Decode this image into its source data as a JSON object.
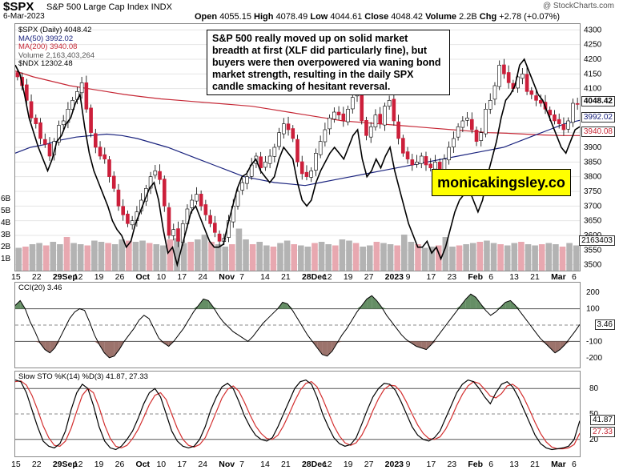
{
  "header": {
    "ticker": "$SPX",
    "description": "S&P 500 Large Cap Index INDX",
    "date": "6-Mar-2023",
    "copyright": "@ StockCharts.com",
    "open_label": "Open",
    "open": "4055.15",
    "high_label": "High",
    "high": "4078.49",
    "low_label": "Low",
    "low": "4044.61",
    "close_label": "Close",
    "close": "4048.42",
    "volume_label": "Volume",
    "volume": "2.2B",
    "chg_label": "Chg",
    "chg": "+2.78 (+0.07%)"
  },
  "legend": {
    "spx": "$SPX (Daily) 4048.42",
    "ma50": "MA(50) 3992.02",
    "ma200": "MA(200) 3940.08",
    "volume": "Volume 2,163,403,264",
    "ndx": "$NDX 12302.48"
  },
  "annotation": "S&P 500 really moved up on solid market breadth at first (XLF did particularly fine), but buyers were then overpowered via waning bond market strength, resulting in the daily SPX candle smacking of hesitant reversal.",
  "watermark": "monicakingsley.co",
  "colors": {
    "up": "#a8a8a8",
    "down": "#cc1f3a",
    "ma50": "#1a237e",
    "ma200": "#c62836",
    "vol_up": "#b3b3b3",
    "vol_down": "#e8a8b0",
    "cci_fill": "#4a7a4a",
    "cci_fill_low": "#8b5a52"
  },
  "x_axis_labels": [
    "15",
    "22",
    "29Sep",
    "12",
    "19",
    "26",
    "Oct",
    "10",
    "17",
    "24",
    "Nov",
    "7",
    "14",
    "21",
    "28Dec",
    "12",
    "19",
    "27",
    "2023",
    "9",
    "17",
    "23",
    "Feb",
    "6",
    "13",
    "21",
    "Mar",
    "6"
  ],
  "cci_legend": "CCI(20) 3.46",
  "sto_legend": "Slow STO %K(14) %D(3) 41.87, 27.33",
  "tags": {
    "spx_last": "4048.42",
    "ma50": "3992.02",
    "ma200": "3940.08",
    "volume": "2163403",
    "cci": "3.46",
    "sto_k": "41.87",
    "sto_d": "27.33"
  },
  "chart_data": [
    {
      "type": "candlestick",
      "title": "$SPX (Daily)",
      "y_right_ticks": [
        3500,
        3550,
        3600,
        3650,
        3700,
        3750,
        3800,
        3850,
        3900,
        3950,
        4000,
        4050,
        4100,
        4150,
        4200,
        4250,
        4300
      ],
      "y_left_volume_ticks": [
        "1B",
        "2B",
        "3B",
        "4B",
        "5B",
        "6B"
      ],
      "ylim": [
        3480,
        4320
      ],
      "close_points": [
        4140,
        4110,
        4060,
        4000,
        3980,
        3930,
        3910,
        3870,
        3920,
        3975,
        3990,
        4030,
        4060,
        4090,
        4120,
        4030,
        3950,
        3900,
        3870,
        3860,
        3800,
        3760,
        3700,
        3670,
        3640,
        3650,
        3680,
        3720,
        3760,
        3800,
        3820,
        3790,
        3700,
        3600,
        3620,
        3580,
        3640,
        3690,
        3720,
        3740,
        3700,
        3670,
        3640,
        3610,
        3580,
        3590,
        3650,
        3700,
        3750,
        3780,
        3800,
        3840,
        3870,
        3830,
        3850,
        3870,
        3900,
        3950,
        3980,
        3960,
        3930,
        3850,
        3810,
        3800,
        3820,
        3880,
        3920,
        3960,
        4000,
        4020,
        4010,
        3990,
        4030,
        4070,
        4080,
        3990,
        3940,
        3970,
        4010,
        3980,
        4040,
        4060,
        3990,
        3930,
        3880,
        3860,
        3840,
        3850,
        3870,
        3840,
        3830,
        3850,
        3820,
        3860,
        3900,
        3930,
        3970,
        3990,
        4000,
        3960,
        3920,
        3950,
        4030,
        4060,
        4110,
        4180,
        4150,
        4120,
        4100,
        4140,
        4150,
        4090,
        4080,
        4060,
        4050,
        4030,
        4010,
        3990,
        3980,
        3960,
        3990,
        4050,
        4048
      ],
      "ma50": [
        3880,
        3900,
        3910,
        3925,
        3935,
        3940,
        3945,
        3940,
        3930,
        3915,
        3900,
        3880,
        3860,
        3840,
        3820,
        3800,
        3790,
        3780,
        3775,
        3770,
        3780,
        3790,
        3800,
        3810,
        3820,
        3830,
        3840,
        3850,
        3860,
        3870,
        3880,
        3890,
        3900,
        3920,
        3940,
        3960,
        3980,
        3992
      ],
      "ma200": [
        4160,
        4140,
        4125,
        4110,
        4100,
        4090,
        4080,
        4072,
        4065,
        4060,
        4055,
        4050,
        4045,
        4040,
        4030,
        4020,
        4010,
        4000,
        3990,
        3985,
        3980,
        3975,
        3970,
        3965,
        3960,
        3955,
        3950,
        3948,
        3945,
        3942,
        3940,
        3940
      ],
      "volume": [
        1.9,
        2.0,
        2.2,
        2.3,
        2.1,
        2.4,
        2.2,
        2.8,
        2.3,
        2.2,
        2.1,
        2.5,
        2.4,
        2.3,
        2.2,
        2.6,
        2.5,
        2.4,
        2.5,
        2.3,
        2.2,
        2.1,
        2.6,
        2.7,
        2.3,
        2.4,
        2.6,
        3.0,
        2.4,
        2.2,
        2.0,
        2.2,
        3.5,
        2.6,
        2.2,
        2.4,
        2.1,
        2.0,
        2.3,
        2.5,
        2.2,
        2.1,
        2.0,
        2.3,
        2.4,
        2.2,
        2.1,
        2.6,
        2.5,
        2.3,
        2.0,
        2.1,
        2.4,
        2.3,
        2.2,
        2.1,
        3.0,
        2.4,
        2.2,
        1.9,
        2.0,
        2.1,
        2.8,
        2.0,
        2.1,
        2.2,
        2.3,
        2.4,
        2.5,
        2.3,
        2.2,
        2.1,
        2.3,
        2.4,
        2.2,
        2.1,
        2.2,
        2.3,
        2.2,
        2.0,
        2.3,
        2.1
      ],
      "ndx_overlay": [
        4180,
        4150,
        4080,
        4000,
        3950,
        3900,
        3860,
        3820,
        3860,
        3920,
        3940,
        3980,
        4000,
        4050,
        4080,
        3970,
        3880,
        3820,
        3780,
        3740,
        3700,
        3650,
        3620,
        3600,
        3560,
        3580,
        3640,
        3680,
        3720,
        3760,
        3780,
        3720,
        3620,
        3540,
        3560,
        3500,
        3560,
        3620,
        3680,
        3700,
        3660,
        3620,
        3580,
        3560,
        3560,
        3570,
        3640,
        3700,
        3760,
        3800,
        3810,
        3840,
        3860,
        3820,
        3800,
        3780,
        3800,
        3860,
        3900,
        3880,
        3860,
        3780,
        3720,
        3700,
        3720,
        3780,
        3820,
        3850,
        3880,
        3900,
        3880,
        3860,
        3900,
        3940,
        3960,
        3860,
        3800,
        3820,
        3860,
        3830,
        3870,
        3900,
        3820,
        3760,
        3700,
        3640,
        3600,
        3560,
        3560,
        3580,
        3540,
        3560,
        3520,
        3560,
        3620,
        3680,
        3720,
        3740,
        3760,
        3720,
        3680,
        3720,
        3800,
        3860,
        3920,
        4000,
        4060,
        4080,
        4110,
        4180,
        4200,
        4160,
        4120,
        4080,
        4060,
        4020,
        3980,
        3940,
        3900,
        3880,
        3920,
        3960,
        3970
      ]
    },
    {
      "type": "line",
      "title": "CCI(20)",
      "y_ticks": [
        200,
        100,
        -100,
        -200
      ],
      "ylim": [
        -260,
        260
      ],
      "values": [
        120,
        150,
        100,
        20,
        -40,
        -110,
        -150,
        -170,
        -140,
        -80,
        -20,
        40,
        80,
        100,
        90,
        20,
        -60,
        -120,
        -170,
        -200,
        -190,
        -150,
        -100,
        -60,
        -20,
        30,
        60,
        40,
        -20,
        -80,
        -110,
        -130,
        -100,
        -60,
        -20,
        30,
        80,
        120,
        160,
        150,
        110,
        60,
        20,
        -10,
        -40,
        -60,
        -80,
        -100,
        -70,
        -30,
        10,
        40,
        70,
        100,
        140,
        130,
        90,
        40,
        -10,
        -60,
        -100,
        -140,
        -180,
        -190,
        -160,
        -110,
        -60,
        -20,
        30,
        80,
        120,
        160,
        180,
        150,
        110,
        60,
        20,
        -20,
        -60,
        -90,
        -110,
        -130,
        -140,
        -150,
        -120,
        -80,
        -40,
        0,
        40,
        80,
        120,
        160,
        190,
        170,
        130,
        90,
        60,
        80,
        110,
        140,
        150,
        120,
        80,
        40,
        0,
        -40,
        -80,
        -110,
        -140,
        -170,
        -150,
        -120,
        -80,
        -40,
        3.46
      ]
    },
    {
      "type": "line",
      "title": "Slow STO %K(14) %D(3)",
      "y_ticks": [
        80,
        50,
        20
      ],
      "ylim": [
        0,
        100
      ],
      "k_values": [
        90,
        88,
        75,
        55,
        35,
        18,
        12,
        10,
        15,
        30,
        55,
        75,
        85,
        80,
        60,
        35,
        18,
        10,
        8,
        12,
        20,
        30,
        45,
        62,
        75,
        80,
        70,
        50,
        30,
        18,
        12,
        10,
        12,
        20,
        35,
        55,
        70,
        82,
        86,
        80,
        65,
        48,
        35,
        25,
        20,
        18,
        22,
        35,
        50,
        65,
        80,
        88,
        90,
        85,
        70,
        50,
        35,
        22,
        15,
        12,
        14,
        22,
        38,
        55,
        70,
        80,
        86,
        85,
        78,
        65,
        50,
        35,
        25,
        20,
        18,
        22,
        30,
        45,
        60,
        75,
        85,
        90,
        88,
        80,
        70,
        62,
        75,
        85,
        88,
        82,
        70,
        55,
        40,
        25,
        15,
        10,
        8,
        9,
        10,
        12,
        20,
        41.87
      ],
      "d_values": [
        88,
        89,
        84,
        72,
        55,
        36,
        22,
        13,
        12,
        18,
        33,
        53,
        72,
        80,
        75,
        58,
        37,
        21,
        12,
        10,
        13,
        21,
        32,
        46,
        61,
        72,
        75,
        67,
        50,
        33,
        20,
        13,
        11,
        14,
        22,
        37,
        53,
        69,
        79,
        83,
        77,
        64,
        49,
        36,
        27,
        21,
        20,
        25,
        36,
        50,
        65,
        78,
        86,
        88,
        82,
        68,
        52,
        36,
        24,
        16,
        13,
        16,
        25,
        38,
        54,
        68,
        79,
        84,
        83,
        76,
        64,
        50,
        37,
        27,
        21,
        20,
        23,
        32,
        45,
        60,
        73,
        83,
        88,
        86,
        79,
        71,
        69,
        74,
        83,
        85,
        80,
        69,
        55,
        40,
        27,
        17,
        11,
        9,
        9,
        10,
        14,
        27.33
      ]
    }
  ]
}
